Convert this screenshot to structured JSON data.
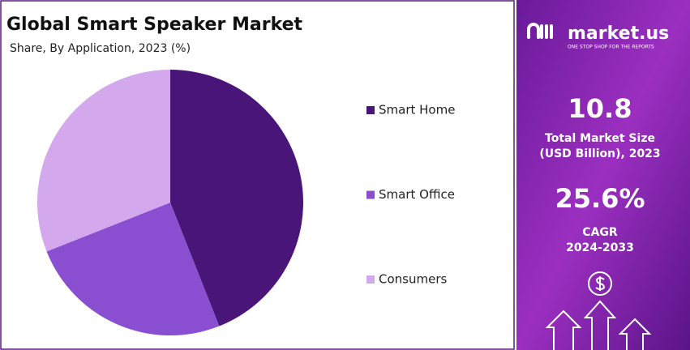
{
  "chart_data": {
    "type": "pie",
    "title": "Global Smart Speaker Market",
    "subtitle": "Share, By Application, 2023 (%)",
    "categories": [
      "Smart Home",
      "Smart Office",
      "Consumers"
    ],
    "values": [
      44,
      25,
      31
    ],
    "colors": [
      "#4a1578",
      "#8a4fd0",
      "#d3a8ec"
    ]
  },
  "panel": {
    "brand": "market.us",
    "tagline": "ONE STOP SHOP FOR THE REPORTS",
    "market_size": "10.8",
    "market_size_label_1": "Total Market Size",
    "market_size_label_2": "(USD Billion), 2023",
    "cagr": "25.6%",
    "cagr_label_1": "CAGR",
    "cagr_label_2": "2024-2033"
  }
}
